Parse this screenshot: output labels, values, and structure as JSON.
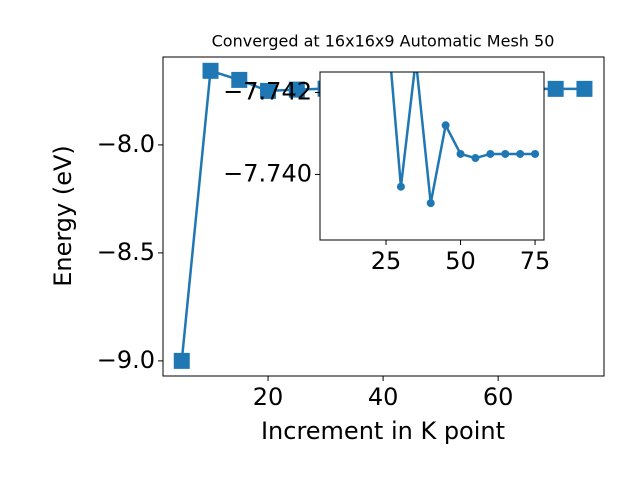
{
  "chart_data": [
    {
      "type": "line",
      "title": "Converged at 16x16x9 Automatic Mesh 50",
      "x_label": "Increment in K point",
      "y_label": "Energy (eV)",
      "x": [
        5,
        10,
        15,
        20,
        25,
        30,
        35,
        40,
        45,
        50,
        55,
        60,
        65,
        70,
        75
      ],
      "series": [
        {
          "name": "Energy",
          "color": "#1f77b4",
          "values": [
            -9.0,
            -7.657,
            -7.699,
            -7.75,
            -7.744,
            -7.7397,
            -7.7428,
            -7.7393,
            -7.7412,
            -7.7405,
            -7.7404,
            -7.7405,
            -7.7405,
            -7.7405,
            -7.7405
          ]
        }
      ],
      "xlim": [
        1.74,
        78.4
      ],
      "ylim": [
        -9.07,
        -7.593
      ],
      "xticks": [
        20,
        40,
        60
      ],
      "yticks": [
        {
          "value": -8.0,
          "label": "−8.0"
        },
        {
          "value": -8.5,
          "label": "−8.5"
        },
        {
          "value": -9.0,
          "label": "−9.0"
        }
      ]
    },
    {
      "type": "line",
      "x": [
        25,
        30,
        35,
        40,
        45,
        50,
        55,
        60,
        65,
        70,
        75
      ],
      "series": [
        {
          "name": "Energy",
          "color": "#1f77b4",
          "values": [
            -7.744,
            -7.7397,
            -7.7428,
            -7.7393,
            -7.7412,
            -7.7405,
            -7.7404,
            -7.7405,
            -7.7405,
            -7.7405,
            -7.7405
          ]
        }
      ],
      "xlim": [
        2.85,
        78
      ],
      "ylim": [
        -7.7384,
        -7.7425
      ],
      "xticks": [
        25,
        50,
        75
      ],
      "yticks": [
        {
          "value": -7.742,
          "label": "−7.742"
        },
        {
          "value": -7.74,
          "label": "−7.740"
        }
      ]
    }
  ]
}
